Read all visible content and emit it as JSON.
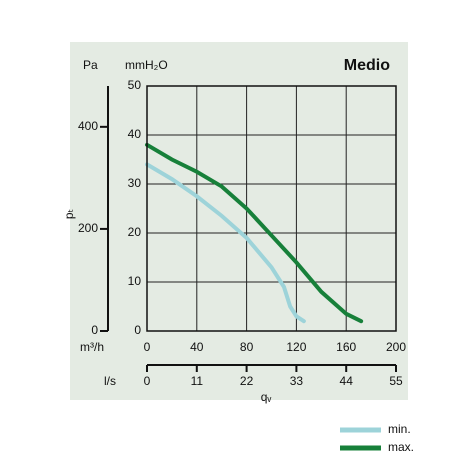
{
  "chart_data": {
    "type": "line",
    "title": "Medio",
    "y_label": "mmH₂O",
    "y2_label": "Pa",
    "y2_axis_label": "pₜ",
    "x_label": "m³/h",
    "x2_label": "l/s",
    "x_axis_label": "qᵥ",
    "xlim": [
      0,
      200
    ],
    "xticks": [
      0,
      40,
      80,
      120,
      160,
      200
    ],
    "x2lim": [
      0,
      55
    ],
    "x2ticks": [
      0,
      11,
      22,
      33,
      44,
      55
    ],
    "ylim": [
      0,
      50
    ],
    "yticks": [
      0,
      10,
      20,
      30,
      40,
      50
    ],
    "y2lim": [
      0,
      480
    ],
    "y2ticks": [
      0,
      200,
      400
    ],
    "grid": true,
    "legend": "bottom-right",
    "series": [
      {
        "name": "min.",
        "color": "#9dd3d9",
        "x": [
          0,
          20,
          40,
          60,
          80,
          100,
          110,
          115,
          120,
          126
        ],
        "values": [
          34,
          31,
          27.5,
          23.5,
          19,
          13,
          9,
          5,
          3,
          2
        ]
      },
      {
        "name": "max.",
        "color": "#17803a",
        "x": [
          0,
          20,
          40,
          60,
          80,
          100,
          120,
          140,
          160,
          172
        ],
        "values": [
          38,
          35,
          32.5,
          29.5,
          25,
          19.5,
          14,
          8,
          3.5,
          2
        ]
      }
    ]
  }
}
